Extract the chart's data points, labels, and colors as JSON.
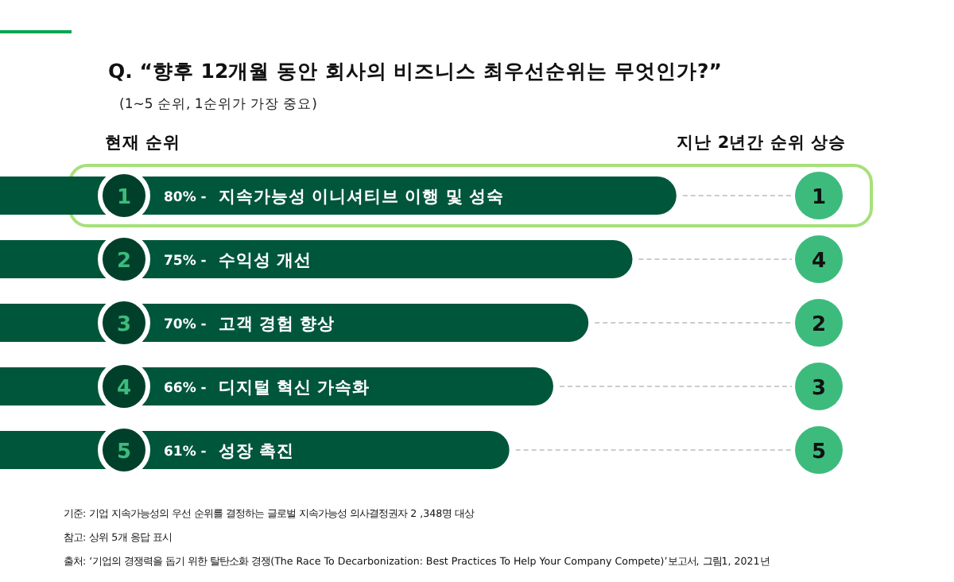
{
  "chart_data": {
    "type": "bar",
    "orientation": "horizontal",
    "title": "Q. “향후 12개월 동안 회사의 비즈니스 최우선순위는 무엇인가?”",
    "subtitle": "(1~5 순위, 1순위가 가장 중요)",
    "categories": [
      "지속가능성 이니셔티브 이행 및 성숙",
      "수익성 개선",
      "고객 경험 향상",
      "디지털 혁신 가속화",
      "성장 촉진"
    ],
    "values": [
      80,
      75,
      70,
      66,
      61
    ],
    "value_labels": [
      "80% -",
      "75% -",
      "70% -",
      "66% -",
      "61% -"
    ],
    "color": "#00563b",
    "annotations": [
      "현재 순위",
      "지난 2년간 순위 상승",
      "1",
      "2",
      "3",
      "4",
      "5",
      "1",
      "4",
      "2",
      "3",
      "5",
      "기준: 기업 지속가능성의 우선 순위를 결정하는 글로벌 지속가능성 의사결정권자 2 ,348명 대상",
      "참고: 상위 5개 응답 표시",
      "출처: ‘기업의 경쟁력을 돕기 위한 탈탄소화 경쟁(The Race To Decarbonization: Best Practices To Help Your Company Compete)’보고서, 그림1, 2021년"
    ]
  }
}
